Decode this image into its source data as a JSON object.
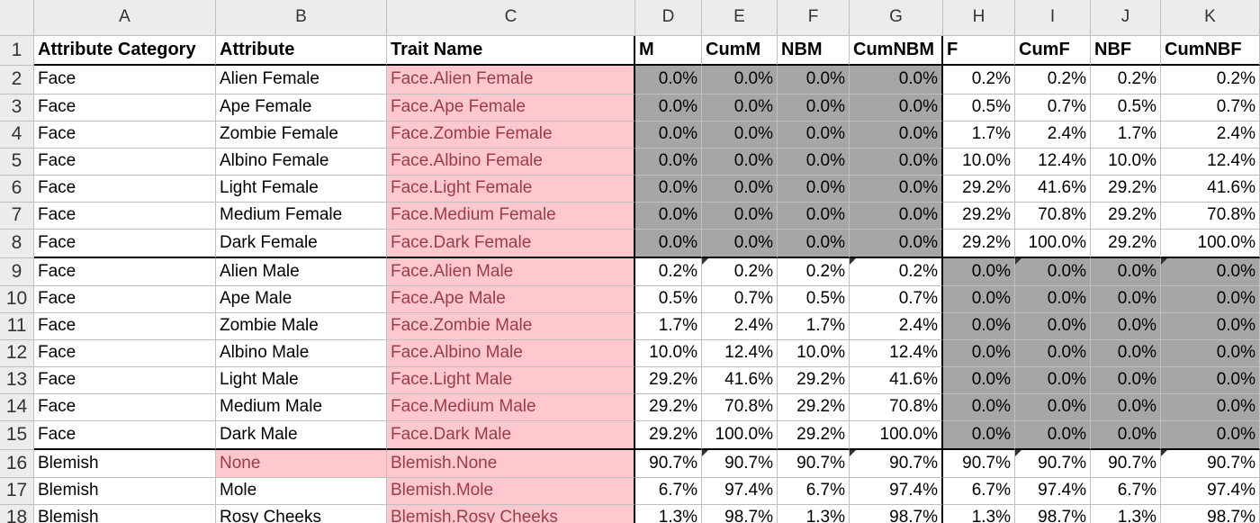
{
  "spreadsheet": {
    "columns": [
      "A",
      "B",
      "C",
      "D",
      "E",
      "F",
      "G",
      "H",
      "I",
      "J",
      "K"
    ],
    "header": [
      "Attribute Category",
      "Attribute",
      "Trait Name",
      "M",
      "CumM",
      "NBM",
      "CumNBM",
      "F",
      "CumF",
      "NBF",
      "CumNBF"
    ],
    "rows": [
      {
        "num": "2",
        "values": [
          "Face",
          "Alien Female",
          "Face.Alien Female",
          "0.0%",
          "0.0%",
          "0.0%",
          "0.0%",
          "0.2%",
          "0.2%",
          "0.2%",
          "0.2%"
        ]
      },
      {
        "num": "3",
        "values": [
          "Face",
          "Ape Female",
          "Face.Ape Female",
          "0.0%",
          "0.0%",
          "0.0%",
          "0.0%",
          "0.5%",
          "0.7%",
          "0.5%",
          "0.7%"
        ]
      },
      {
        "num": "4",
        "values": [
          "Face",
          "Zombie Female",
          "Face.Zombie Female",
          "0.0%",
          "0.0%",
          "0.0%",
          "0.0%",
          "1.7%",
          "2.4%",
          "1.7%",
          "2.4%"
        ]
      },
      {
        "num": "5",
        "values": [
          "Face",
          "Albino Female",
          "Face.Albino Female",
          "0.0%",
          "0.0%",
          "0.0%",
          "0.0%",
          "10.0%",
          "12.4%",
          "10.0%",
          "12.4%"
        ]
      },
      {
        "num": "6",
        "values": [
          "Face",
          "Light Female",
          "Face.Light Female",
          "0.0%",
          "0.0%",
          "0.0%",
          "0.0%",
          "29.2%",
          "41.6%",
          "29.2%",
          "41.6%"
        ]
      },
      {
        "num": "7",
        "values": [
          "Face",
          "Medium Female",
          "Face.Medium Female",
          "0.0%",
          "0.0%",
          "0.0%",
          "0.0%",
          "29.2%",
          "70.8%",
          "29.2%",
          "70.8%"
        ]
      },
      {
        "num": "8",
        "values": [
          "Face",
          "Dark Female",
          "Face.Dark Female",
          "0.0%",
          "0.0%",
          "0.0%",
          "0.0%",
          "29.2%",
          "100.0%",
          "29.2%",
          "100.0%"
        ]
      },
      {
        "num": "9",
        "values": [
          "Face",
          "Alien Male",
          "Face.Alien Male",
          "0.2%",
          "0.2%",
          "0.2%",
          "0.2%",
          "0.0%",
          "0.0%",
          "0.0%",
          "0.0%"
        ]
      },
      {
        "num": "10",
        "values": [
          "Face",
          "Ape Male",
          "Face.Ape Male",
          "0.5%",
          "0.7%",
          "0.5%",
          "0.7%",
          "0.0%",
          "0.0%",
          "0.0%",
          "0.0%"
        ]
      },
      {
        "num": "11",
        "values": [
          "Face",
          "Zombie Male",
          "Face.Zombie Male",
          "1.7%",
          "2.4%",
          "1.7%",
          "2.4%",
          "0.0%",
          "0.0%",
          "0.0%",
          "0.0%"
        ]
      },
      {
        "num": "12",
        "values": [
          "Face",
          "Albino Male",
          "Face.Albino Male",
          "10.0%",
          "12.4%",
          "10.0%",
          "12.4%",
          "0.0%",
          "0.0%",
          "0.0%",
          "0.0%"
        ]
      },
      {
        "num": "13",
        "values": [
          "Face",
          "Light Male",
          "Face.Light Male",
          "29.2%",
          "41.6%",
          "29.2%",
          "41.6%",
          "0.0%",
          "0.0%",
          "0.0%",
          "0.0%"
        ]
      },
      {
        "num": "14",
        "values": [
          "Face",
          "Medium Male",
          "Face.Medium Male",
          "29.2%",
          "70.8%",
          "29.2%",
          "70.8%",
          "0.0%",
          "0.0%",
          "0.0%",
          "0.0%"
        ]
      },
      {
        "num": "15",
        "values": [
          "Face",
          "Dark Male",
          "Face.Dark Male",
          "29.2%",
          "100.0%",
          "29.2%",
          "100.0%",
          "0.0%",
          "0.0%",
          "0.0%",
          "0.0%"
        ]
      },
      {
        "num": "16",
        "values": [
          "Blemish",
          "None",
          "Blemish.None",
          "90.7%",
          "90.7%",
          "90.7%",
          "90.7%",
          "90.7%",
          "90.7%",
          "90.7%",
          "90.7%"
        ]
      },
      {
        "num": "17",
        "values": [
          "Blemish",
          "Mole",
          "Blemish.Mole",
          "6.7%",
          "97.4%",
          "6.7%",
          "97.4%",
          "6.7%",
          "97.4%",
          "6.7%",
          "97.4%"
        ]
      },
      {
        "num": "18",
        "values": [
          "Blemish",
          "Rosy Cheeks",
          "Blemish.Rosy Cheeks",
          "1.3%",
          "98.7%",
          "1.3%",
          "98.7%",
          "1.3%",
          "98.7%",
          "1.3%",
          "98.7%"
        ]
      }
    ]
  },
  "colors": {
    "highlight_fill": "#ffc7ce",
    "highlight_text": "#9c3c47",
    "gray_fill": "#a6a6a6",
    "header_fill": "#ececec"
  }
}
